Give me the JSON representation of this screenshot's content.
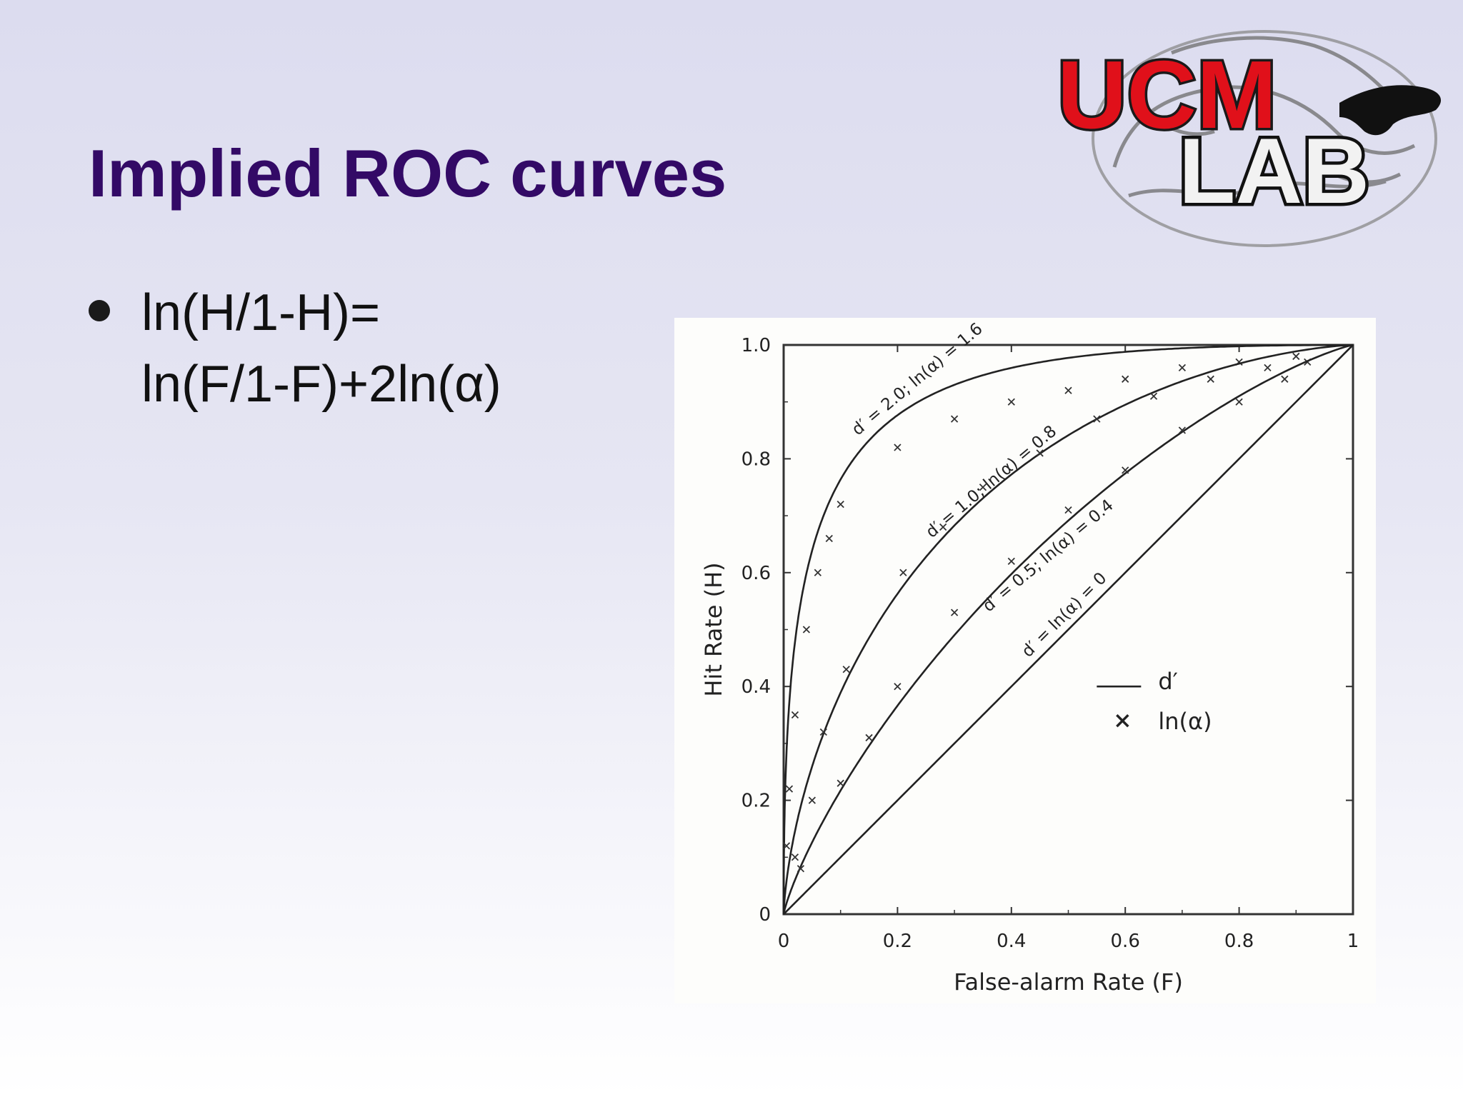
{
  "slide": {
    "title": "Implied ROC curves",
    "equation_line1": "ln(H/1-H)=",
    "equation_line2": "ln(F/1-F)+2ln(α)"
  },
  "logo": {
    "line1": "UCM",
    "line2": "LAB"
  },
  "colors": {
    "title": "#330a66",
    "logo_red": "#e0101a",
    "text": "#111111"
  },
  "chart_data": {
    "type": "line",
    "xlabel": "False-alarm Rate (F)",
    "ylabel": "Hit Rate (H)",
    "xlim": [
      0,
      1
    ],
    "ylim": [
      0,
      1
    ],
    "xticks": [
      "0",
      "0.2",
      "0.4",
      "0.6",
      "0.8",
      "1"
    ],
    "yticks": [
      "0",
      "0.2",
      "0.4",
      "0.6",
      "0.8",
      "1.0"
    ],
    "legend": {
      "line_label": "d′",
      "marker_label": "ln(α)",
      "placement": "center-right"
    },
    "series": [
      {
        "name": "d′ = 2.0; ln(α) = 1.6",
        "dprime": 2.0,
        "ln_alpha": 1.6,
        "points": [
          [
            0.005,
            0.12
          ],
          [
            0.01,
            0.22
          ],
          [
            0.02,
            0.35
          ],
          [
            0.04,
            0.5
          ],
          [
            0.06,
            0.6
          ],
          [
            0.08,
            0.66
          ],
          [
            0.1,
            0.72
          ],
          [
            0.2,
            0.82
          ],
          [
            0.3,
            0.87
          ],
          [
            0.4,
            0.9
          ],
          [
            0.5,
            0.92
          ],
          [
            0.6,
            0.94
          ],
          [
            0.7,
            0.96
          ],
          [
            0.8,
            0.97
          ],
          [
            0.9,
            0.98
          ]
        ]
      },
      {
        "name": "d′ = 1.0; ln(α) = 0.8",
        "dprime": 1.0,
        "ln_alpha": 0.8,
        "points": [
          [
            0.02,
            0.1
          ],
          [
            0.05,
            0.2
          ],
          [
            0.07,
            0.32
          ],
          [
            0.11,
            0.43
          ],
          [
            0.21,
            0.6
          ],
          [
            0.28,
            0.68
          ],
          [
            0.35,
            0.75
          ],
          [
            0.45,
            0.81
          ],
          [
            0.55,
            0.87
          ],
          [
            0.65,
            0.91
          ],
          [
            0.75,
            0.94
          ],
          [
            0.85,
            0.96
          ],
          [
            0.92,
            0.97
          ]
        ]
      },
      {
        "name": "d′ = 0.5; ln(α) = 0.4",
        "dprime": 0.5,
        "ln_alpha": 0.4,
        "points": [
          [
            0.03,
            0.08
          ],
          [
            0.1,
            0.23
          ],
          [
            0.15,
            0.31
          ],
          [
            0.2,
            0.4
          ],
          [
            0.3,
            0.53
          ],
          [
            0.4,
            0.62
          ],
          [
            0.5,
            0.71
          ],
          [
            0.6,
            0.78
          ],
          [
            0.7,
            0.85
          ],
          [
            0.8,
            0.9
          ],
          [
            0.88,
            0.94
          ]
        ]
      },
      {
        "name": "d′ = ln(α) = 0",
        "dprime": 0,
        "ln_alpha": 0,
        "points": []
      }
    ]
  }
}
